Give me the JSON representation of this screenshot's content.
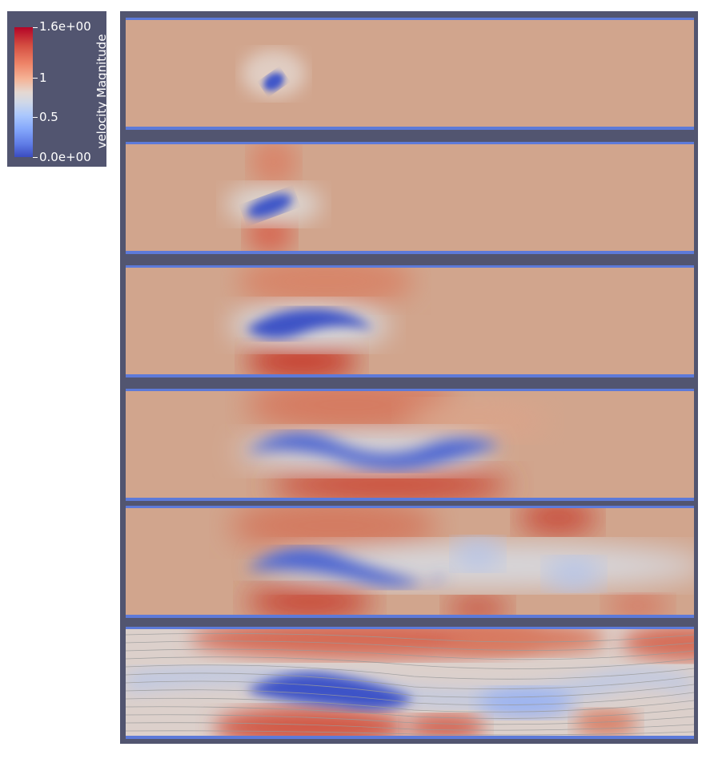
{
  "colorbar": {
    "title": "velocity Magnitude",
    "labels": [
      "1.6e+00",
      "1",
      "0.5",
      "0.0e+00"
    ],
    "range": [
      0.0,
      1.6
    ],
    "colormap": "coolwarm",
    "colors": {
      "high": "#b40426",
      "mid": "#dddcdc",
      "low": "#3b4cc0"
    }
  },
  "frame_color": "#525570",
  "panel_count": 6
}
